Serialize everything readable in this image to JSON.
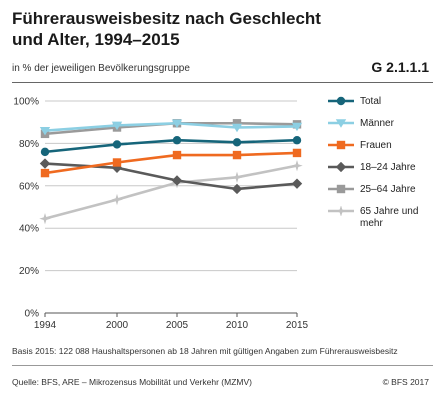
{
  "header": {
    "title": "Führerausweisbesitz nach Geschlecht und Alter, 1994–2015",
    "subtitle": "in % der jeweiligen Bevölkerungsgruppe",
    "code": "G 2.1.1.1"
  },
  "footer": {
    "basis": "Basis 2015: 122 088 Haushaltspersonen ab 18 Jahren mit gültigen Angaben zum Führerausweisbesitz",
    "source": "Quelle: BFS, ARE – Mikrozensus Mobilität und Verkehr (MZMV)",
    "copyright": "© BFS 2017"
  },
  "chart_data": {
    "type": "line",
    "x": [
      1994,
      2000,
      2005,
      2010,
      2015
    ],
    "x_tick_labels": [
      "1994",
      "2000",
      "2005",
      "2010",
      "2015"
    ],
    "ylim": [
      0,
      100
    ],
    "y_ticks": [
      0,
      20,
      40,
      60,
      80,
      100
    ],
    "y_tick_labels": [
      "0%",
      "20%",
      "40%",
      "60%",
      "80%",
      "100%"
    ],
    "grid": "horizontal",
    "legend_position": "right",
    "series": [
      {
        "name": "Total",
        "values": [
          76,
          79.5,
          81.5,
          80.5,
          81.5
        ],
        "color": "#16657a",
        "marker": "circle"
      },
      {
        "name": "Männer",
        "values": [
          86,
          88.5,
          89.5,
          87.5,
          88
        ],
        "color": "#8ccfe3",
        "marker": "triangle"
      },
      {
        "name": "Frauen",
        "values": [
          66,
          71,
          74.5,
          74.5,
          75.5
        ],
        "color": "#ef6a20",
        "marker": "square"
      },
      {
        "name": "18–24 Jahre",
        "values": [
          70.5,
          68.5,
          62.5,
          58.5,
          61
        ],
        "color": "#5a5a5a",
        "marker": "diamond"
      },
      {
        "name": "25–64 Jahre",
        "values": [
          84.5,
          87.5,
          89.5,
          89.5,
          89
        ],
        "color": "#9a9a9a",
        "marker": "square"
      },
      {
        "name": "65 Jahre und mehr",
        "values": [
          44.5,
          53.5,
          61.5,
          64,
          69.5
        ],
        "color": "#c2c2c2",
        "marker": "star"
      }
    ]
  }
}
